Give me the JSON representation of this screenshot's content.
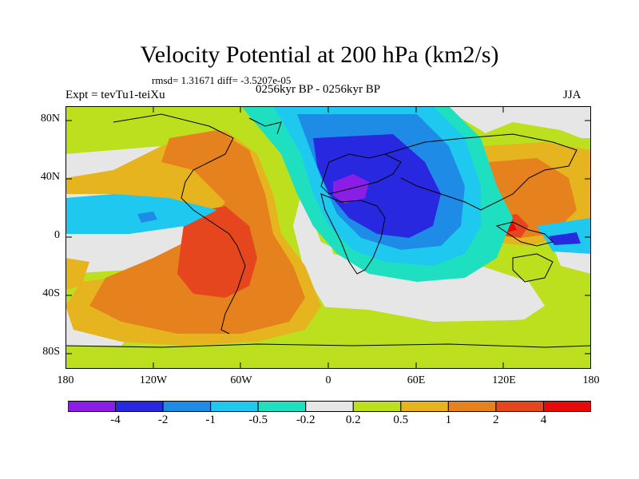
{
  "title": "Velocity Potential at 200 hPa (km2/s)",
  "stats": "rmsd= 1.31671  diff= -3.5207e-05",
  "experiment": "Expt = tevTu1-teiXu",
  "period": "0256kyr BP - 0256kyr BP",
  "season": "JJA",
  "y_axis": {
    "labels": [
      "80N",
      "40N",
      "0",
      "40S",
      "80S"
    ]
  },
  "x_axis": {
    "labels": [
      "180",
      "120W",
      "60W",
      "0",
      "60E",
      "120E",
      "180"
    ]
  },
  "colorbar": {
    "labels": [
      "-4",
      "-2",
      "-1",
      "-0.5",
      "-0.2",
      "0.2",
      "0.5",
      "1",
      "2",
      "4"
    ],
    "colors": [
      "#8a1ee6",
      "#2828e0",
      "#1e8ce6",
      "#1ec8ee",
      "#1ee0c0",
      "#e6e6e6",
      "#bce01e",
      "#e6b41e",
      "#e6821e",
      "#e6461e",
      "#e60a0a"
    ]
  },
  "palette": {
    "violet": "#8a1ee6",
    "blue": "#2828e0",
    "mid_blue": "#1e8ce6",
    "cyan": "#1ec8ee",
    "teal": "#1ee0c0",
    "neutral": "#e6e6e6",
    "lime": "#bce01e",
    "gold": "#e6b41e",
    "orange": "#e6821e",
    "red_orange": "#e6461e",
    "red": "#e60a0a"
  }
}
